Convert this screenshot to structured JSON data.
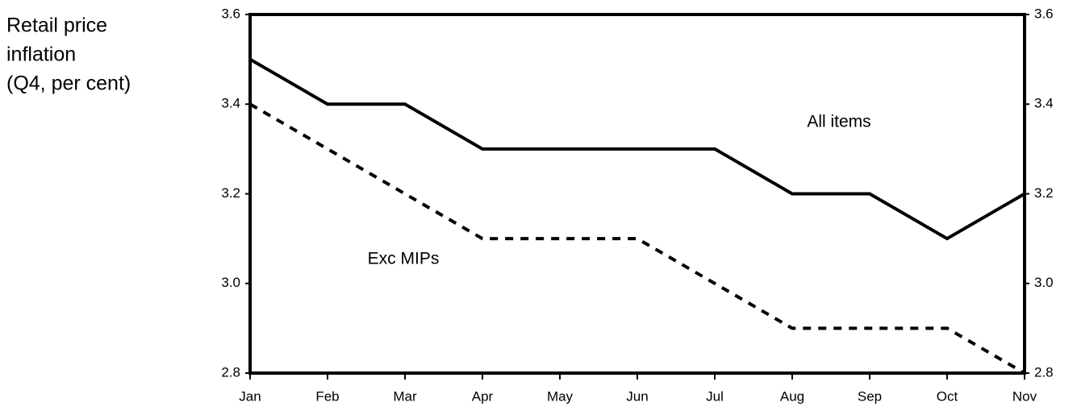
{
  "chart_data": {
    "type": "line",
    "y_label_lines": [
      "Retail price",
      "inflation",
      "(Q4, per cent)"
    ],
    "categories": [
      "Jan",
      "Feb",
      "Mar",
      "Apr",
      "May",
      "Jun",
      "Jul",
      "Aug",
      "Sep",
      "Oct",
      "Nov"
    ],
    "series": [
      {
        "name": "All items",
        "color": "#000000",
        "dash": false,
        "values": [
          3.5,
          3.4,
          3.4,
          3.3,
          3.3,
          3.3,
          3.3,
          3.2,
          3.2,
          3.1,
          3.2
        ]
      },
      {
        "name": "Exc MIPs",
        "color": "#000000",
        "dash": true,
        "values": [
          3.4,
          3.3,
          3.2,
          3.1,
          3.1,
          3.1,
          3.0,
          2.9,
          2.9,
          2.9,
          2.8
        ]
      }
    ],
    "ylim": [
      2.8,
      3.6
    ],
    "yticks": [
      2.8,
      {
        "value": 3,
        "label": "3.0"
      },
      3.2,
      3.4,
      3.6
    ],
    "y2lim": [
      2.8,
      3.6
    ],
    "y2ticks": [
      2.8,
      {
        "value": 3,
        "label": "3.0"
      },
      3.2,
      3.4,
      3.6
    ],
    "grid": false
  }
}
